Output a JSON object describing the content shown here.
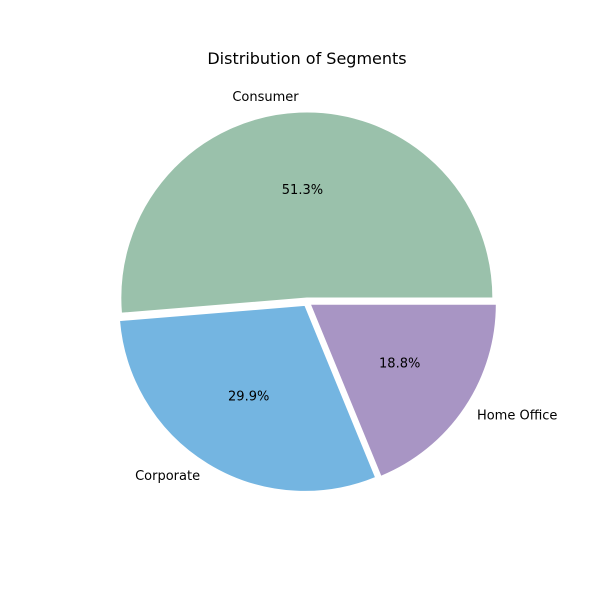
{
  "chart_data": {
    "type": "pie",
    "title": "Distribution of Segments",
    "slices": [
      {
        "label": "Consumer",
        "value": 51.3,
        "pct_label": "51.3%",
        "color": "#9AC1AB"
      },
      {
        "label": "Corporate",
        "value": 29.9,
        "pct_label": "29.9%",
        "color": "#74B5E1"
      },
      {
        "label": "Home Office",
        "value": 18.8,
        "pct_label": "18.8%",
        "color": "#A895C4"
      }
    ],
    "start_angle_deg": 0,
    "direction": "counterclockwise",
    "exploded": true
  }
}
